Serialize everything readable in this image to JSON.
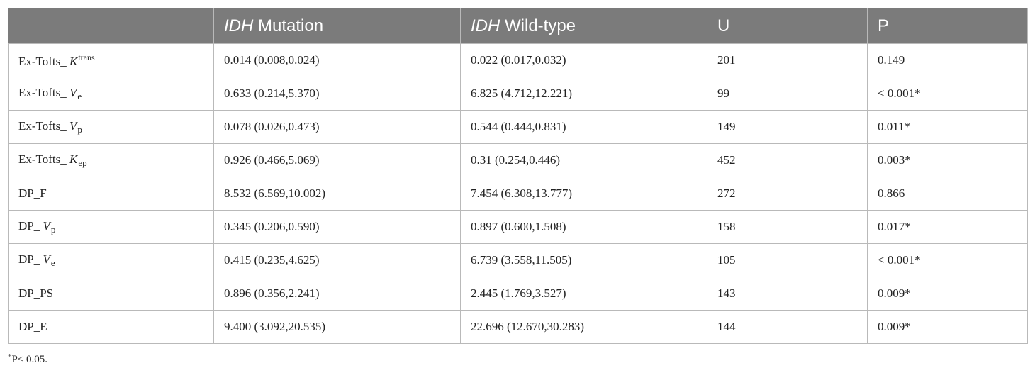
{
  "table": {
    "headers": [
      {
        "italic": "",
        "text": ""
      },
      {
        "italic": "IDH",
        "text": " Mutation"
      },
      {
        "italic": "IDH",
        "text": " Wild-type"
      },
      {
        "italic": "",
        "text": "U"
      },
      {
        "italic": "",
        "text": "P"
      }
    ],
    "rows": [
      {
        "label": {
          "prefix": "Ex-Tofts_ ",
          "var": "K",
          "sub": "",
          "sup": "trans"
        },
        "mutation": "0.014 (0.008,0.024)",
        "wildtype": "0.022 (0.017,0.032)",
        "u": "201",
        "p": "0.149"
      },
      {
        "label": {
          "prefix": "Ex-Tofts_ ",
          "var": "V",
          "sub": "e",
          "sup": ""
        },
        "mutation": "0.633 (0.214,5.370)",
        "wildtype": "6.825 (4.712,12.221)",
        "u": "99",
        "p": "< 0.001*"
      },
      {
        "label": {
          "prefix": "Ex-Tofts_ ",
          "var": "V",
          "sub": "p",
          "sup": ""
        },
        "mutation": "0.078 (0.026,0.473)",
        "wildtype": "0.544 (0.444,0.831)",
        "u": "149",
        "p": "0.011*"
      },
      {
        "label": {
          "prefix": "Ex-Tofts_ ",
          "var": "K",
          "sub": "ep",
          "sup": ""
        },
        "mutation": "0.926 (0.466,5.069)",
        "wildtype": "0.31 (0.254,0.446)",
        "u": "452",
        "p": "0.003*"
      },
      {
        "label": {
          "prefix": "DP_F",
          "var": "",
          "sub": "",
          "sup": ""
        },
        "mutation": "8.532 (6.569,10.002)",
        "wildtype": "7.454 (6.308,13.777)",
        "u": "272",
        "p": "0.866"
      },
      {
        "label": {
          "prefix": "DP_ ",
          "var": "V",
          "sub": "p",
          "sup": ""
        },
        "mutation": "0.345 (0.206,0.590)",
        "wildtype": "0.897 (0.600,1.508)",
        "u": "158",
        "p": "0.017*"
      },
      {
        "label": {
          "prefix": "DP_ ",
          "var": "V",
          "sub": "e",
          "sup": ""
        },
        "mutation": "0.415 (0.235,4.625)",
        "wildtype": "6.739 (3.558,11.505)",
        "u": "105",
        "p": "< 0.001*"
      },
      {
        "label": {
          "prefix": "DP_PS",
          "var": "",
          "sub": "",
          "sup": ""
        },
        "mutation": "0.896 (0.356,2.241)",
        "wildtype": "2.445 (1.769,3.527)",
        "u": "143",
        "p": "0.009*"
      },
      {
        "label": {
          "prefix": "DP_E",
          "var": "",
          "sub": "",
          "sup": ""
        },
        "mutation": "9.400 (3.092,20.535)",
        "wildtype": "22.696 (12.670,30.283)",
        "u": "144",
        "p": "0.009*"
      }
    ]
  },
  "footnote": {
    "mark": "*",
    "text": "P< 0.05."
  }
}
